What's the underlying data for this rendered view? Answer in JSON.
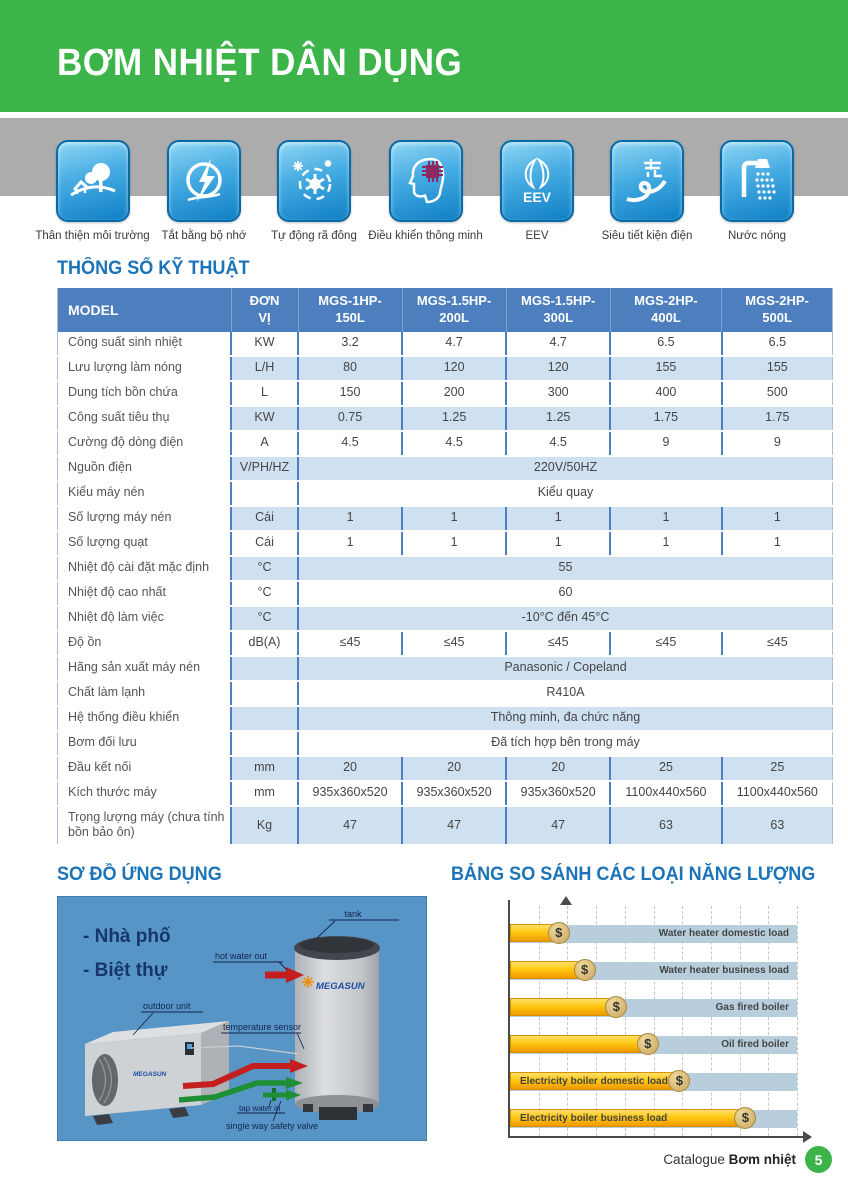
{
  "page": {
    "title": "BƠM NHIỆT DÂN DỤNG"
  },
  "colors": {
    "banner_green": "#3CB44A",
    "band_gray": "#ACACAC",
    "heading_blue": "#1B74B8",
    "table_header_blue": "#4D7FBE",
    "row_alt_blue": "#CFE0F1",
    "icon_tile_blue": "#1287CC",
    "diagram_panel_blue": "#5795C7",
    "bar_yellow": "#FFC812",
    "bar_track_blue": "#B9CEDD"
  },
  "features": [
    {
      "icon": "house-tree-eco-icon",
      "label": "Thân thiện môi trường"
    },
    {
      "icon": "lightning-memory-off-icon",
      "label": "Tắt bằng bộ nhớ"
    },
    {
      "icon": "snowflake-defrost-icon",
      "label": "Tự động rã đông"
    },
    {
      "icon": "head-chip-smart-icon",
      "label": "Điều khiển thông minh"
    },
    {
      "icon": "eev-valve-icon",
      "label": "EEV"
    },
    {
      "icon": "super-saving-icon",
      "label": "Siêu tiết kiện điện"
    },
    {
      "icon": "shower-hot-water-icon",
      "label": "Nước nóng"
    }
  ],
  "specs": {
    "heading": "THÔNG SỐ KỸ THUẬT",
    "header": {
      "model": "MODEL",
      "unit": [
        "ĐƠN",
        "VỊ"
      ],
      "models": [
        [
          "MGS-1HP-",
          "150L"
        ],
        [
          "MGS-1.5HP-",
          "200L"
        ],
        [
          "MGS-1.5HP-",
          "300L"
        ],
        [
          "MGS-2HP-",
          "400L"
        ],
        [
          "MGS-2HP-",
          "500L"
        ]
      ]
    },
    "rows": [
      {
        "label": "Công suất sinh nhiệt",
        "unit": "KW",
        "values": [
          "3.2",
          "4.7",
          "4.7",
          "6.5",
          "6.5"
        ]
      },
      {
        "label": "Lưu lượng làm nóng",
        "unit": "L/H",
        "values": [
          "80",
          "120",
          "120",
          "155",
          "155"
        ]
      },
      {
        "label": "Dung tích bồn chứa",
        "unit": "L",
        "values": [
          "150",
          "200",
          "300",
          "400",
          "500"
        ]
      },
      {
        "label": "Công suất tiêu thụ",
        "unit": "KW",
        "values": [
          "0.75",
          "1.25",
          "1.25",
          "1.75",
          "1.75"
        ]
      },
      {
        "label": "Cường độ dòng điện",
        "unit": "A",
        "values": [
          "4.5",
          "4.5",
          "4.5",
          "9",
          "9"
        ]
      },
      {
        "label": "Nguồn điện",
        "unit": "V/PH/HZ",
        "span": "220V/50HZ"
      },
      {
        "label": "Kiểu máy nén",
        "unit": "",
        "span": "Kiểu quay"
      },
      {
        "label": "Số lượng máy nén",
        "unit": "Cái",
        "values": [
          "1",
          "1",
          "1",
          "1",
          "1"
        ]
      },
      {
        "label": "Số lượng quạt",
        "unit": "Cái",
        "values": [
          "1",
          "1",
          "1",
          "1",
          "1"
        ]
      },
      {
        "label": "Nhiệt độ cài đặt mặc định",
        "unit": "°C",
        "span": "55"
      },
      {
        "label": "Nhiệt độ cao nhất",
        "unit": "°C",
        "span": "60"
      },
      {
        "label": "Nhiệt độ làm việc",
        "unit": "°C",
        "span": "-10°C  đến 45°C"
      },
      {
        "label": "Độ ồn",
        "unit": "dB(A)",
        "values": [
          "≤45",
          "≤45",
          "≤45",
          "≤45",
          "≤45"
        ]
      },
      {
        "label": "Hãng sản xuất máy nén",
        "unit": "",
        "span": "Panasonic / Copeland"
      },
      {
        "label": "Chất làm lạnh",
        "unit": "",
        "span": "R410A"
      },
      {
        "label": "Hệ thống điều khiển",
        "unit": "",
        "span": "Thông minh, đa chức năng"
      },
      {
        "label": "Bơm đối lưu",
        "unit": "",
        "span": "Đã tích hợp bên trong máy"
      },
      {
        "label": "Đầu kết nối",
        "unit": "mm",
        "values": [
          "20",
          "20",
          "20",
          "25",
          "25"
        ]
      },
      {
        "label": "Kích thước máy",
        "unit": "mm",
        "values": [
          "935x360x520",
          "935x360x520",
          "935x360x520",
          "1100x440x560",
          "1100x440x560"
        ]
      },
      {
        "label": "Trọng lượng máy (chưa tính bồn bảo ôn)",
        "unit": "Kg",
        "values": [
          "47",
          "47",
          "47",
          "63",
          "63"
        ]
      }
    ]
  },
  "application": {
    "heading": "SƠ ĐỒ ỨNG DỤNG",
    "bullets": [
      "- Nhà phố",
      "- Biệt thự"
    ],
    "brand": "MEGASUN",
    "labels": {
      "tank": "tank",
      "hot_water_out": "hot water out",
      "outdoor_unit": "outdoor unit",
      "temperature_sensor": "temperature sensor",
      "tap_water_in": "tap water in",
      "safety_valve": "single way safety valve"
    }
  },
  "chart_data": {
    "type": "bar",
    "orientation": "horizontal",
    "title": "BẢNG SO SÁNH CÁC LOẠI NĂNG LƯỢNG",
    "categories": [
      "Water heater domestic load",
      "Water heater business load",
      "Gas fired boiler",
      "Oil fired boiler",
      "Electricity boiler domestic load",
      "Electricity boiler business load"
    ],
    "values": [
      17,
      26,
      37,
      48,
      59,
      82
    ],
    "values_note": "relative running cost, bar length as % of x-axis",
    "coin_symbol": "$",
    "grid": "dashed-vertical",
    "gridline_count": 10,
    "legend": "none",
    "label_positions": [
      "track",
      "track",
      "track",
      "track",
      "bar",
      "bar"
    ]
  },
  "footer": {
    "label_regular": "Catalogue",
    "label_bold": "Bơm nhiệt",
    "page": "5"
  }
}
